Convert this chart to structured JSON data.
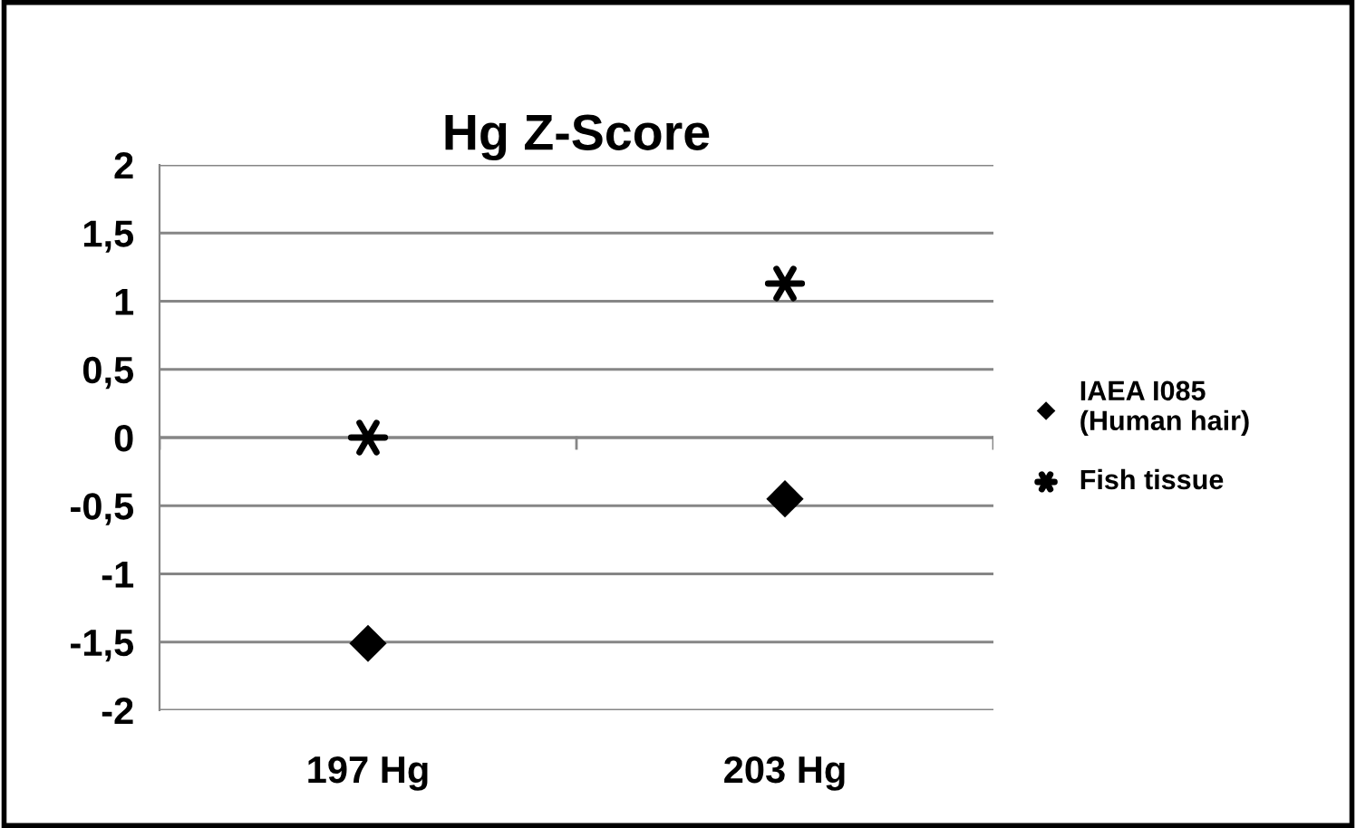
{
  "chart_data": {
    "type": "scatter",
    "title": "Hg Z-Score",
    "categories": [
      "197 Hg",
      "203 Hg"
    ],
    "series": [
      {
        "name": "IAEA I085\n(Human hair)",
        "color": "#000000",
        "values": [
          -1.51,
          -0.45
        ],
        "marker": "diamond"
      },
      {
        "name": "Fish tissue",
        "color": "#000000",
        "values": [
          0.0,
          1.13
        ],
        "marker": "cross"
      }
    ],
    "ylim": [
      -2,
      2
    ],
    "yticks": [
      {
        "value": -2,
        "label": "-2"
      },
      {
        "value": -1.5,
        "label": "-1,5"
      },
      {
        "value": -1,
        "label": "-1"
      },
      {
        "value": -0.5,
        "label": "-0,5"
      },
      0,
      {
        "value": 0.5,
        "label": "0,5"
      },
      1,
      {
        "value": 1.5,
        "label": "1,5"
      },
      2
    ],
    "grid": "y",
    "legend": "right"
  }
}
